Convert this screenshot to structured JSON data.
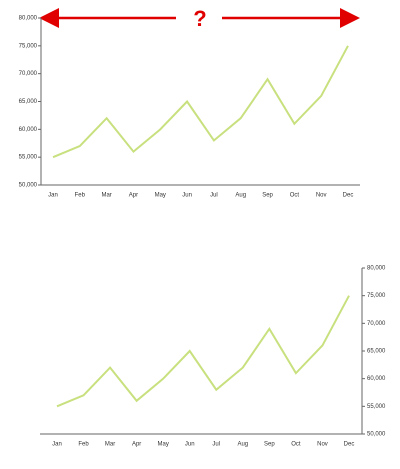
{
  "chart_data": [
    {
      "type": "line",
      "annotation": "?",
      "y_axis_position": "left",
      "categories": [
        "Jan",
        "Feb",
        "Mar",
        "Apr",
        "May",
        "Jun",
        "Jul",
        "Aug",
        "Sep",
        "Oct",
        "Nov",
        "Dec"
      ],
      "values": [
        55000,
        57000,
        62000,
        56000,
        60000,
        65000,
        58000,
        62000,
        69000,
        61000,
        66000,
        75000
      ],
      "color": "#c8e07e",
      "ylim": [
        50000,
        80000
      ],
      "yticks": [
        {
          "value": 50000,
          "label": "50,000"
        },
        {
          "value": 55000,
          "label": "55,000"
        },
        {
          "value": 60000,
          "label": "60,000"
        },
        {
          "value": 65000,
          "label": "65,000"
        },
        {
          "value": 70000,
          "label": "70,000"
        },
        {
          "value": 75000,
          "label": "75,000"
        },
        {
          "value": 80000,
          "label": "80,000"
        }
      ]
    },
    {
      "type": "line",
      "y_axis_position": "right",
      "categories": [
        "Jan",
        "Feb",
        "Mar",
        "Apr",
        "May",
        "Jun",
        "Jul",
        "Aug",
        "Sep",
        "Oct",
        "Nov",
        "Dec"
      ],
      "values": [
        55000,
        57000,
        62000,
        56000,
        60000,
        65000,
        58000,
        62000,
        69000,
        61000,
        66000,
        75000
      ],
      "color": "#c8e07e",
      "ylim": [
        50000,
        80000
      ],
      "yticks": [
        {
          "value": 50000,
          "label": "50,000"
        },
        {
          "value": 55000,
          "label": "55,000"
        },
        {
          "value": 60000,
          "label": "60,000"
        },
        {
          "value": 65000,
          "label": "65,000"
        },
        {
          "value": 70000,
          "label": "70,000"
        },
        {
          "value": 75000,
          "label": "75,000"
        },
        {
          "value": 80000,
          "label": "80,000"
        }
      ]
    }
  ]
}
